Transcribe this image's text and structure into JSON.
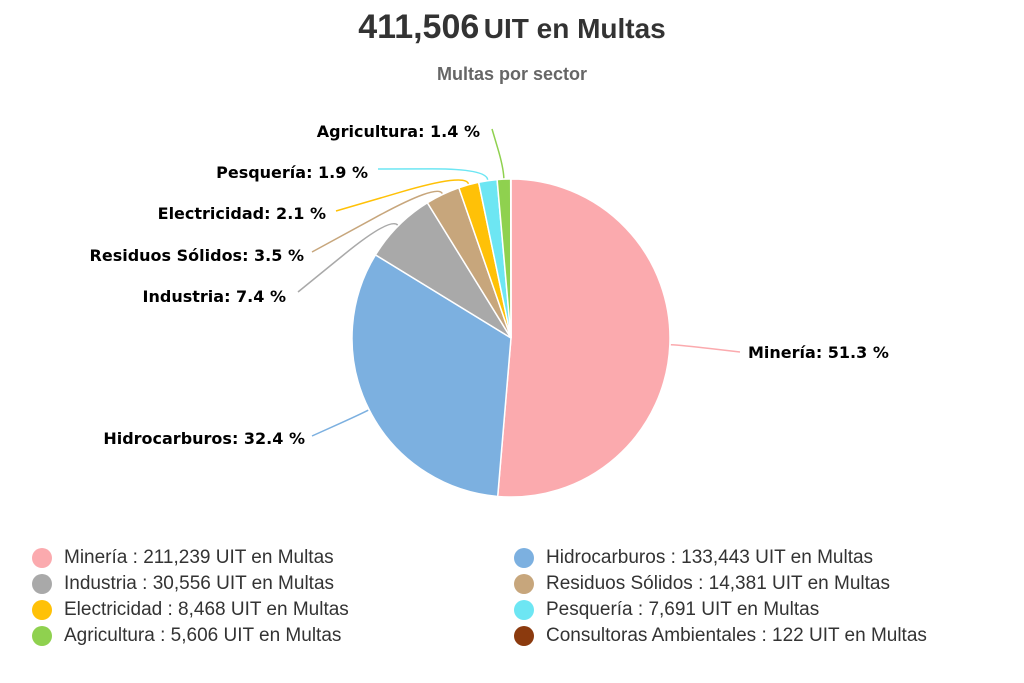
{
  "title": {
    "value": "411,506",
    "text": "UIT en Multas"
  },
  "subtitle": "Multas por sector",
  "chart_data": {
    "type": "pie",
    "title": "411,506 UIT en Multas",
    "subtitle": "Multas por sector",
    "unit": "UIT en Multas",
    "legend_position": "bottom",
    "slices": [
      {
        "name": "Minería",
        "value": 211239,
        "value_label": "211,239",
        "percent_label": "51.3 %",
        "color": "#fbaaae"
      },
      {
        "name": "Hidrocarburos",
        "value": 133443,
        "value_label": "133,443",
        "percent_label": "32.4 %",
        "color": "#7cb0e0"
      },
      {
        "name": "Industria",
        "value": 30556,
        "value_label": "30,556",
        "percent_label": "7.4 %",
        "color": "#a9a9a9"
      },
      {
        "name": "Residuos Sólidos",
        "value": 14381,
        "value_label": "14,381",
        "percent_label": "3.5 %",
        "color": "#c7a67c"
      },
      {
        "name": "Electricidad",
        "value": 8468,
        "value_label": "8,468",
        "percent_label": "2.1 %",
        "color": "#ffc107"
      },
      {
        "name": "Pesquería",
        "value": 7691,
        "value_label": "7,691",
        "percent_label": "1.9 %",
        "color": "#6de6f3"
      },
      {
        "name": "Agricultura",
        "value": 5606,
        "value_label": "5,606",
        "percent_label": "1.4 %",
        "color": "#8fd14f"
      },
      {
        "name": "Consultoras Ambientales",
        "value": 122,
        "value_label": "122",
        "percent_label": "",
        "color": "#8b3a0e"
      }
    ]
  },
  "legend": {
    "separator": " : ",
    "order": [
      0,
      1,
      2,
      3,
      4,
      5,
      6,
      7
    ]
  }
}
